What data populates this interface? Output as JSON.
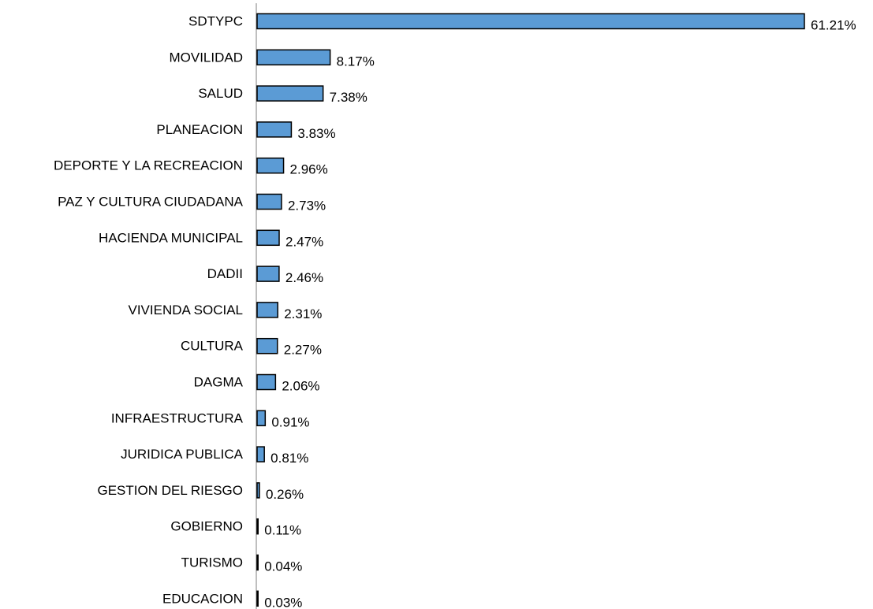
{
  "chart_data": {
    "type": "bar",
    "orientation": "horizontal",
    "title": "",
    "xlabel": "",
    "ylabel": "",
    "grid": false,
    "legend": "none",
    "value_format": "percent-2dp",
    "categories": [
      "SDTYPC",
      "MOVILIDAD",
      "SALUD",
      "PLANEACION",
      "DEPORTE Y LA RECREACION",
      "PAZ Y CULTURA CIUDADANA",
      "HACIENDA MUNICIPAL",
      "DADII",
      "VIVIENDA SOCIAL",
      "CULTURA",
      "DAGMA",
      "INFRAESTRUCTURA",
      "JURIDICA PUBLICA",
      "GESTION DEL RIESGO",
      "GOBIERNO",
      "TURISMO",
      "EDUCACION"
    ],
    "values": [
      61.21,
      8.17,
      7.38,
      3.83,
      2.96,
      2.73,
      2.47,
      2.46,
      2.31,
      2.27,
      2.06,
      0.91,
      0.81,
      0.26,
      0.11,
      0.04,
      0.03
    ],
    "value_labels": [
      "61.21%",
      "8.17%",
      "7.38%",
      "3.83%",
      "2.96%",
      "2.73%",
      "2.47%",
      "2.46%",
      "2.31%",
      "2.27%",
      "2.06%",
      "0.91%",
      "0.81%",
      "0.26%",
      "0.11%",
      "0.04%",
      "0.03%"
    ],
    "xlim": [
      0,
      61.21
    ],
    "colors": {
      "bar_fill": "#5b9bd5",
      "bar_stroke": "#000000",
      "axis": "#7f7f7f"
    }
  }
}
